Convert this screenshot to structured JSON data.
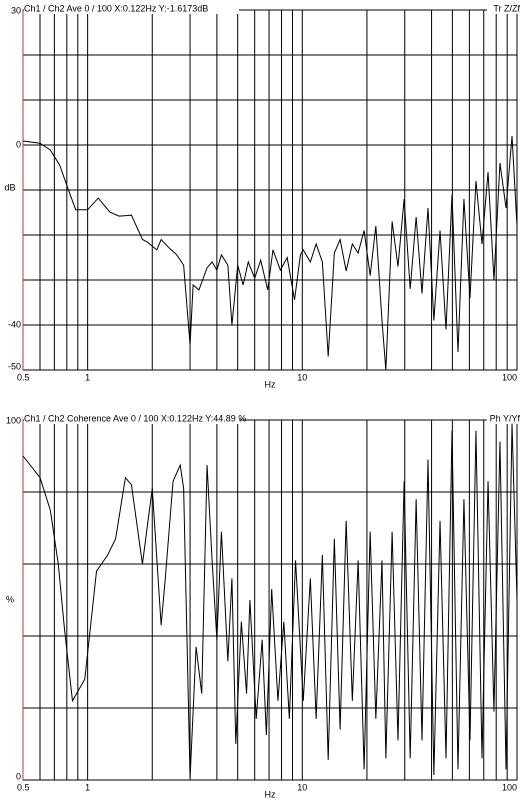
{
  "chart_data": [
    {
      "type": "line",
      "title": "Ch1 / Ch2  Ave 0 / 100  X:0.122Hz  Y:-1.6173dB",
      "title_right": "Tr Z/Zf",
      "xlabel": "Hz",
      "ylabel": "dB",
      "xscale": "log",
      "color": "#000000",
      "y_axis_color": "#cc3333",
      "xlim": [
        0.5,
        100
      ],
      "xticks": [
        0.5,
        1,
        10,
        100
      ],
      "minor_xticks": [
        0.6,
        0.7,
        0.8,
        0.9,
        2,
        3,
        4,
        5,
        6,
        7,
        8,
        9,
        20,
        30,
        40,
        50,
        60,
        70,
        80,
        90
      ],
      "ylim": [
        -50,
        30
      ],
      "yticks": [
        30,
        0,
        -40,
        -50
      ],
      "minor_yticks": [
        20,
        10,
        -10,
        -20,
        -30
      ],
      "x": [
        0.5,
        0.6,
        0.67,
        0.74,
        0.83,
        0.88,
        1.0,
        1.12,
        1.27,
        1.4,
        1.6,
        1.8,
        1.9,
        2.1,
        2.2,
        2.4,
        2.6,
        2.8,
        3.0,
        3.1,
        3.3,
        3.6,
        3.8,
        4.0,
        4.2,
        4.5,
        4.7,
        5.0,
        5.3,
        5.6,
        6.0,
        6.4,
        6.9,
        7.3,
        7.9,
        8.5,
        9.2,
        9.8,
        10.1,
        10.9,
        11.6,
        12.4,
        13.2,
        14.1,
        15.0,
        16.0,
        17.1,
        18.2,
        19.4,
        20.7,
        22.0,
        23.5,
        24.5,
        26.2,
        27.9,
        29.8,
        31.8,
        33.9,
        36.1,
        38.5,
        41.0,
        43.8,
        46.7,
        49.8,
        53.1,
        56.6,
        60.4,
        64.4,
        68.7,
        73.3,
        78.1,
        83.3,
        88.9,
        94.8,
        100
      ],
      "values": [
        0.9,
        0.4,
        -1.1,
        -4.4,
        -11.1,
        -14.4,
        -14.4,
        -11.8,
        -14.9,
        -15.8,
        -15.6,
        -21,
        -21.6,
        -23.3,
        -21,
        -22.9,
        -24.4,
        -26.7,
        -44.4,
        -31.1,
        -32.2,
        -27.3,
        -26,
        -27.8,
        -24.4,
        -26.7,
        -40,
        -26.7,
        -31.1,
        -26,
        -29.6,
        -25.6,
        -32.2,
        -23.3,
        -27.8,
        -25,
        -34.4,
        -24.4,
        -23.3,
        -26,
        -22,
        -26,
        -47,
        -24,
        -21,
        -28,
        -22,
        -24,
        -19,
        -29,
        -18,
        -39,
        -50,
        -17,
        -27,
        -12,
        -32,
        -16,
        -33,
        -14,
        -39,
        -19,
        -41,
        -11,
        -46,
        -12,
        -34,
        -8,
        -22,
        -6,
        -30,
        -4,
        -14,
        2,
        -18
      ]
    },
    {
      "type": "line",
      "title": "Ch1 / Ch2  Coherence Ave 0 / 100  X:0.122Hz  Y:44.89 %",
      "title_right": "Ph Y/Yf",
      "xlabel": "Hz",
      "ylabel": "%",
      "xscale": "log",
      "color": "#000000",
      "y_axis_color": "#cc3333",
      "xlim": [
        0.5,
        100
      ],
      "xticks": [
        0.5,
        1,
        10,
        100
      ],
      "minor_xticks": [
        0.6,
        0.7,
        0.8,
        0.9,
        2,
        3,
        4,
        5,
        6,
        7,
        8,
        9,
        20,
        30,
        40,
        50,
        60,
        70,
        80,
        90
      ],
      "ylim": [
        0,
        100
      ],
      "yticks": [
        100,
        0
      ],
      "minor_yticks": [
        80,
        60,
        40,
        20
      ],
      "x": [
        0.5,
        0.6,
        0.67,
        0.73,
        0.78,
        0.85,
        0.97,
        1.1,
        1.24,
        1.35,
        1.5,
        1.6,
        1.8,
        2.0,
        2.2,
        2.3,
        2.5,
        2.7,
        2.8,
        3.0,
        3.2,
        3.4,
        3.6,
        3.8,
        4.0,
        4.2,
        4.5,
        4.7,
        4.9,
        5.2,
        5.5,
        5.7,
        6.1,
        6.5,
        6.8,
        7.2,
        7.7,
        8.2,
        8.7,
        9.3,
        10.1,
        10.9,
        11.6,
        12.4,
        13.2,
        14.1,
        15.0,
        16.0,
        17.1,
        18.2,
        19.4,
        20.7,
        22.0,
        23.5,
        24.5,
        26.2,
        27.9,
        29.8,
        31.8,
        33.9,
        36.1,
        38.5,
        41.0,
        43.8,
        46.7,
        49.8,
        53.1,
        56.6,
        60.4,
        64.4,
        68.7,
        73.3,
        78.1,
        83.3,
        88.9,
        94.8,
        100
      ],
      "values": [
        90,
        84,
        75,
        60,
        42,
        22,
        28,
        58,
        62.5,
        67,
        84,
        82,
        60,
        81,
        43,
        56,
        83,
        87.5,
        81,
        0.5,
        37,
        24,
        87.5,
        61,
        39,
        69,
        33,
        56,
        10,
        44,
        24,
        50,
        17,
        39,
        12.5,
        53,
        22,
        44,
        17,
        61,
        22,
        56,
        17,
        62.5,
        5.6,
        67,
        14,
        72,
        22,
        61,
        3,
        69,
        17,
        61,
        6,
        69,
        11,
        83,
        6,
        78,
        11,
        89,
        1.4,
        72,
        6,
        97,
        3,
        78,
        11,
        97,
        6,
        83,
        19,
        94,
        3,
        99,
        50
      ]
    }
  ]
}
